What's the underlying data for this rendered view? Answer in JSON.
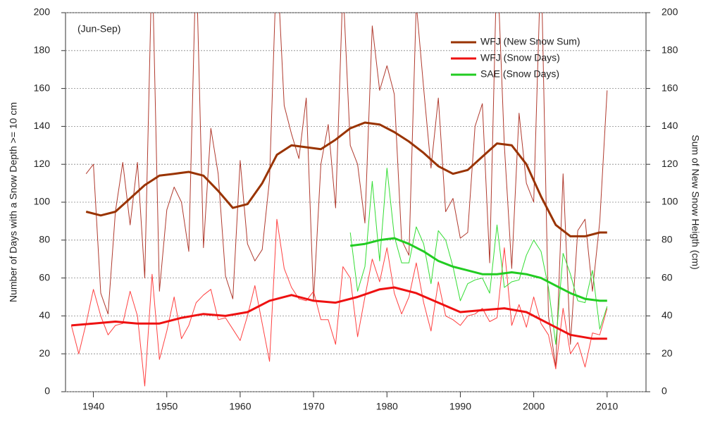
{
  "chart_data": {
    "type": "line",
    "annotation": "(Jun-Sep)",
    "ylabel": "Number of Days with a Snow Depth >= 10 cm",
    "y2label": "Sum of New Snow Heigth (cm)",
    "xlim": [
      1936.2,
      2015.3
    ],
    "xticks": [
      1940,
      1950,
      1960,
      1970,
      1980,
      1990,
      2000,
      2010
    ],
    "ylim": [
      0,
      200
    ],
    "yticks": [
      0,
      20,
      40,
      60,
      80,
      100,
      120,
      140,
      160,
      180,
      200
    ],
    "y2lim": [
      0,
      200
    ],
    "y2ticks": [
      0,
      20,
      40,
      60,
      80,
      100,
      120,
      140,
      160,
      180,
      200
    ],
    "grid": true,
    "legend": "upper right",
    "series": [
      {
        "color": "#b03a2e",
        "width": 1,
        "axis": "y2",
        "x": [
          1939,
          1940,
          1941,
          1942,
          1943,
          1944,
          1945,
          1946,
          1947,
          1948,
          1949,
          1950,
          1951,
          1952,
          1953,
          1954,
          1955,
          1956,
          1957,
          1958,
          1959,
          1960,
          1961,
          1962,
          1963,
          1964,
          1965,
          1966,
          1967,
          1968,
          1969,
          1970,
          1971,
          1972,
          1973,
          1974,
          1975,
          1976,
          1977,
          1978,
          1979,
          1980,
          1981,
          1982,
          1983,
          1984,
          1985,
          1986,
          1987,
          1988,
          1989,
          1990,
          1991,
          1992,
          1993,
          1994,
          1995,
          1996,
          1997,
          1998,
          1999,
          2000,
          2001,
          2002,
          2003,
          2004,
          2005,
          2006,
          2007,
          2008,
          2009,
          2010
        ],
        "values": [
          115,
          120,
          52,
          41,
          95,
          121,
          88,
          121,
          60,
          230,
          53,
          96,
          108,
          100,
          74,
          230,
          76,
          139,
          115,
          61,
          49,
          122,
          78,
          69,
          75,
          112,
          230,
          151,
          136,
          123,
          155,
          48,
          120,
          141,
          97,
          215,
          130,
          120,
          89,
          193,
          159,
          172,
          157,
          80,
          72,
          205,
          160,
          118,
          155,
          95,
          102,
          81,
          84,
          140,
          152,
          68,
          230,
          130,
          65,
          147,
          110,
          100,
          230,
          40,
          13,
          115,
          25,
          85,
          91,
          53,
          90,
          159
        ]
      },
      {
        "color": "#ff4040",
        "width": 1,
        "axis": "y",
        "x": [
          1937,
          1938,
          1939,
          1940,
          1941,
          1942,
          1943,
          1944,
          1945,
          1946,
          1947,
          1948,
          1949,
          1950,
          1951,
          1952,
          1953,
          1954,
          1955,
          1956,
          1957,
          1958,
          1959,
          1960,
          1961,
          1962,
          1963,
          1964,
          1965,
          1966,
          1967,
          1968,
          1969,
          1970,
          1971,
          1972,
          1973,
          1974,
          1975,
          1976,
          1977,
          1978,
          1979,
          1980,
          1981,
          1982,
          1983,
          1984,
          1985,
          1986,
          1987,
          1988,
          1989,
          1990,
          1991,
          1992,
          1993,
          1994,
          1995,
          1996,
          1997,
          1998,
          1999,
          2000,
          2001,
          2002,
          2003,
          2004,
          2005,
          2006,
          2007,
          2008,
          2009,
          2010
        ],
        "values": [
          35,
          20,
          36,
          54,
          40,
          30,
          35,
          36,
          53,
          40,
          3,
          62,
          17,
          32,
          50,
          28,
          35,
          47,
          51,
          54,
          38,
          39,
          33,
          27,
          40,
          56,
          36,
          16,
          91,
          65,
          55,
          49,
          48,
          53,
          38,
          38,
          25,
          66,
          60,
          29,
          50,
          70,
          58,
          76,
          52,
          41,
          50,
          68,
          47,
          32,
          58,
          40,
          38,
          35,
          40,
          41,
          44,
          37,
          39,
          76,
          35,
          46,
          34,
          50,
          36,
          30,
          12,
          44,
          20,
          26,
          13,
          31,
          30,
          44
        ]
      },
      {
        "color": "#33dd33",
        "width": 1,
        "axis": "y",
        "x": [
          1975,
          1976,
          1977,
          1978,
          1979,
          1980,
          1981,
          1982,
          1983,
          1984,
          1985,
          1986,
          1987,
          1988,
          1989,
          1990,
          1991,
          1992,
          1993,
          1994,
          1995,
          1996,
          1997,
          1998,
          1999,
          2000,
          2001,
          2002,
          2003,
          2004,
          2005,
          2006,
          2007,
          2008,
          2009,
          2010
        ],
        "values": [
          84,
          53,
          66,
          111,
          69,
          118,
          82,
          68,
          68,
          87,
          78,
          57,
          85,
          80,
          66,
          48,
          57,
          59,
          60,
          52,
          88,
          55,
          58,
          59,
          72,
          80,
          74,
          55,
          25,
          73,
          62,
          48,
          47,
          64,
          33,
          45
        ]
      },
      {
        "name": "WFJ (New Snow Sum)",
        "color": "#993300",
        "width": 3,
        "axis": "y2",
        "x": [
          1939,
          1941,
          1943,
          1945,
          1947,
          1949,
          1951,
          1953,
          1955,
          1957,
          1959,
          1961,
          1963,
          1965,
          1967,
          1969,
          1971,
          1973,
          1975,
          1977,
          1979,
          1981,
          1983,
          1985,
          1987,
          1989,
          1991,
          1993,
          1995,
          1997,
          1999,
          2001,
          2003,
          2005,
          2007,
          2009,
          2010
        ],
        "values": [
          95,
          93,
          95,
          102,
          109,
          114,
          115,
          116,
          114,
          106,
          97,
          99,
          110,
          125,
          130,
          129,
          128,
          133,
          139,
          142,
          141,
          137,
          132,
          126,
          119,
          115,
          117,
          124,
          131,
          130,
          120,
          103,
          88,
          82,
          82,
          84,
          84
        ]
      },
      {
        "name": "WFJ (Snow Days)",
        "color": "#ee1111",
        "width": 3,
        "axis": "y",
        "x": [
          1937,
          1940,
          1943,
          1946,
          1949,
          1952,
          1955,
          1958,
          1961,
          1964,
          1967,
          1970,
          1973,
          1976,
          1979,
          1981,
          1984,
          1987,
          1990,
          1993,
          1996,
          1999,
          2002,
          2005,
          2008,
          2010
        ],
        "values": [
          35,
          36,
          37,
          36,
          36,
          39,
          41,
          40,
          42,
          48,
          51,
          48,
          47,
          50,
          54,
          55,
          52,
          47,
          42,
          43,
          44,
          42,
          36,
          30,
          28,
          28
        ]
      },
      {
        "name": "SAE (Snow Days)",
        "color": "#22cc22",
        "width": 3,
        "axis": "y",
        "x": [
          1975,
          1977,
          1979,
          1981,
          1983,
          1985,
          1987,
          1989,
          1991,
          1993,
          1995,
          1997,
          1999,
          2001,
          2003,
          2005,
          2007,
          2009,
          2010
        ],
        "values": [
          77,
          78,
          80,
          81,
          78,
          74,
          69,
          66,
          64,
          62,
          62,
          63,
          62,
          60,
          56,
          52,
          49,
          48,
          48
        ]
      }
    ]
  }
}
